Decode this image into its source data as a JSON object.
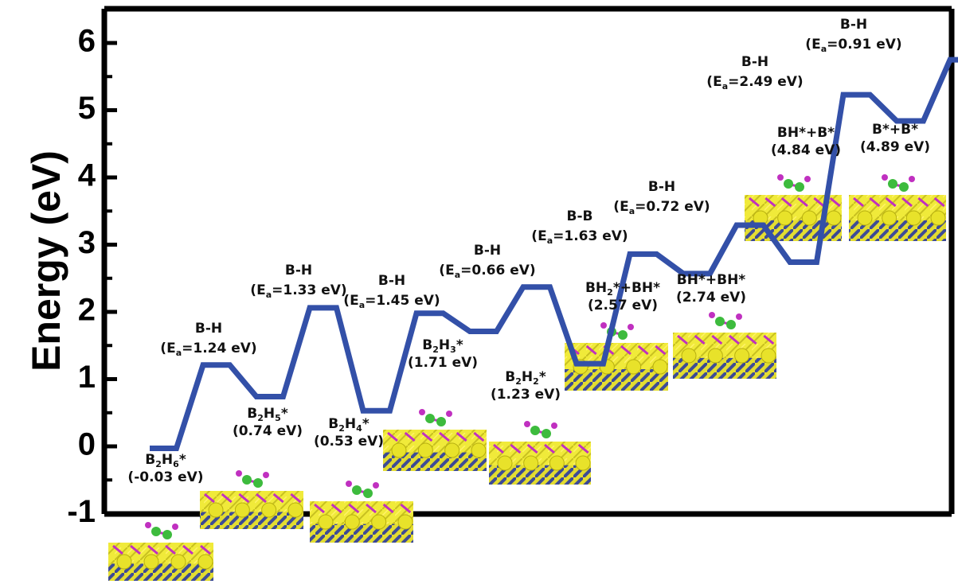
{
  "chart_data": {
    "type": "line",
    "title": "",
    "ylabel": "Energy (eV)",
    "xlabel": "",
    "ylim": [
      -1,
      6.5
    ],
    "yticks": [
      "-1",
      "0",
      "1",
      "2",
      "3",
      "4",
      "5",
      "6"
    ],
    "grid": false,
    "legend": "none",
    "line_color": "#3350a8",
    "atom_colors": {
      "surface": "#e8e22a",
      "boron": "#3dbb3d",
      "hydrogen": "#c030c0",
      "substrate": "#2a3aa0"
    },
    "path": [
      -0.03,
      -0.03,
      1.21,
      1.21,
      0.74,
      0.74,
      2.06,
      2.06,
      0.53,
      0.53,
      1.98,
      1.98,
      1.71,
      1.71,
      2.37,
      2.37,
      1.23,
      1.23,
      2.86,
      2.86,
      2.57,
      2.57,
      3.29,
      3.29,
      2.74,
      2.74,
      5.23,
      5.23,
      4.84,
      4.84,
      5.75,
      5.75,
      4.89,
      4.89
    ],
    "states": [
      {
        "label": "B2H6*",
        "parts": [
          "B",
          "2",
          "H",
          "6",
          "*"
        ],
        "value_text": "(-0.03 eV)",
        "energy": -0.03
      },
      {
        "label": "B2H5*",
        "parts": [
          "B",
          "2",
          "H",
          "5",
          "*"
        ],
        "value_text": "(0.74 eV)",
        "energy": 0.74
      },
      {
        "label": "B2H4*",
        "parts": [
          "B",
          "2",
          "H",
          "4",
          "*"
        ],
        "value_text": "(0.53 eV)",
        "energy": 0.53
      },
      {
        "label": "B2H3*",
        "parts": [
          "B",
          "2",
          "H",
          "3",
          "*"
        ],
        "value_text": "(1.71 eV)",
        "energy": 1.71
      },
      {
        "label": "B2H2*",
        "parts": [
          "B",
          "2",
          "H",
          "2",
          "*"
        ],
        "value_text": "(1.23 eV)",
        "energy": 1.23
      },
      {
        "label": "BH2*+BH*",
        "parts": [
          "BH",
          "2",
          "*+BH*"
        ],
        "value_text": "(2.57 eV)",
        "energy": 2.57
      },
      {
        "label": "BH*+BH*",
        "parts": [
          "BH*+BH*"
        ],
        "value_text": "(2.74 eV)",
        "energy": 2.74
      },
      {
        "label": "BH*+B*",
        "parts": [
          "BH*+B*"
        ],
        "value_text": "(4.84 eV)",
        "energy": 4.84
      },
      {
        "label": "B*+B*",
        "parts": [
          "B*+B*"
        ],
        "value_text": "(4.89 eV)",
        "energy": 4.89
      }
    ],
    "transition_states": [
      {
        "bond": "B-H",
        "ea_text": "=1.24 eV)"
      },
      {
        "bond": "B-H",
        "ea_text": "=1.33 eV)"
      },
      {
        "bond": "B-H",
        "ea_text": "=1.45 eV)"
      },
      {
        "bond": "B-H",
        "ea_text": "=0.66 eV)"
      },
      {
        "bond": "B-B",
        "ea_text": "=1.63 eV)"
      },
      {
        "bond": "B-H",
        "ea_text": "=0.72 eV)"
      },
      {
        "bond": "B-H",
        "ea_text": "=2.49 eV)"
      },
      {
        "bond": "B-H",
        "ea_text": "=0.91 eV)"
      }
    ],
    "ea_prefix": "(E",
    "ea_sub": "a"
  }
}
